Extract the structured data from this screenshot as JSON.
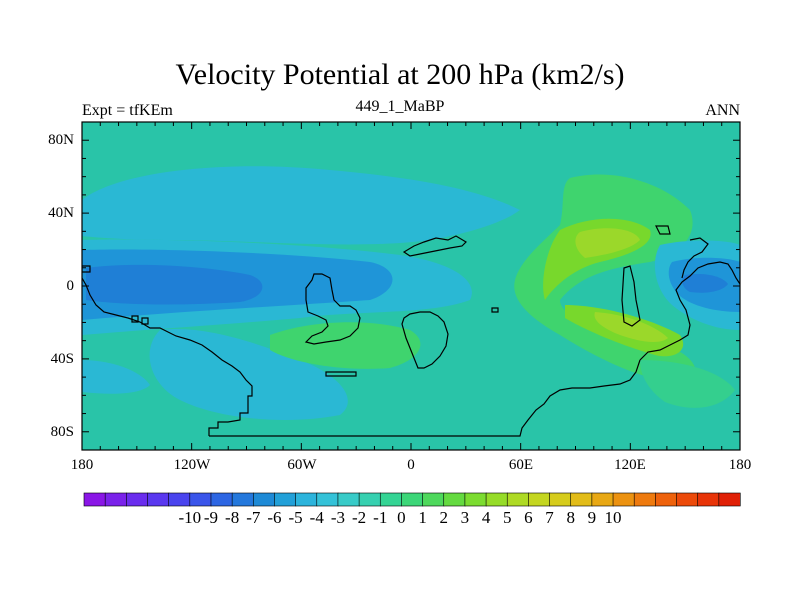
{
  "title": "Velocity Potential at 200 hPa (km2/s)",
  "left_string": "Expt = tfKEm",
  "center_string": "449_1_MaBP",
  "right_string": "ANN",
  "lat_labels": [
    "80N",
    "40N",
    "0",
    "40S",
    "80S"
  ],
  "lon_labels": [
    "180",
    "120W",
    "60W",
    "0",
    "60E",
    "120E",
    "180"
  ],
  "colorbar": {
    "labels": [
      "-10",
      "-9",
      "-8",
      "-7",
      "-6",
      "-5",
      "-4",
      "-3",
      "-2",
      "-1",
      "0",
      "1",
      "2",
      "3",
      "4",
      "5",
      "6",
      "7",
      "8",
      "9",
      "10"
    ],
    "colors": [
      "#8a16e6",
      "#7a22ea",
      "#6a2dee",
      "#5a38ef",
      "#4a44ee",
      "#3a55ea",
      "#2d66e3",
      "#2478dc",
      "#1e8ad6",
      "#22a0d8",
      "#2cb4dc",
      "#34c2d8",
      "#38cbc8",
      "#36d0b0",
      "#34d494",
      "#3cd678",
      "#4ed85c",
      "#64da40",
      "#7cdc30",
      "#96dc28",
      "#aeda24",
      "#c4d620",
      "#d6cc1c",
      "#e2bc18",
      "#e8a814",
      "#ec9210",
      "#ee7a0e",
      "#ee620c",
      "#ec4a0a",
      "#e83408",
      "#e02006"
    ]
  },
  "map_colors": {
    "background": "#29c4a8",
    "light_blue": "#2ab8d4",
    "mid_blue": "#1f95d8",
    "dark_blue": "#1f7fd6",
    "green": "#3fd46e",
    "bright_green": "#78d82c",
    "yellow_green": "#9bd82a",
    "light_green": "#34cf8e",
    "coastline": "#000000"
  }
}
